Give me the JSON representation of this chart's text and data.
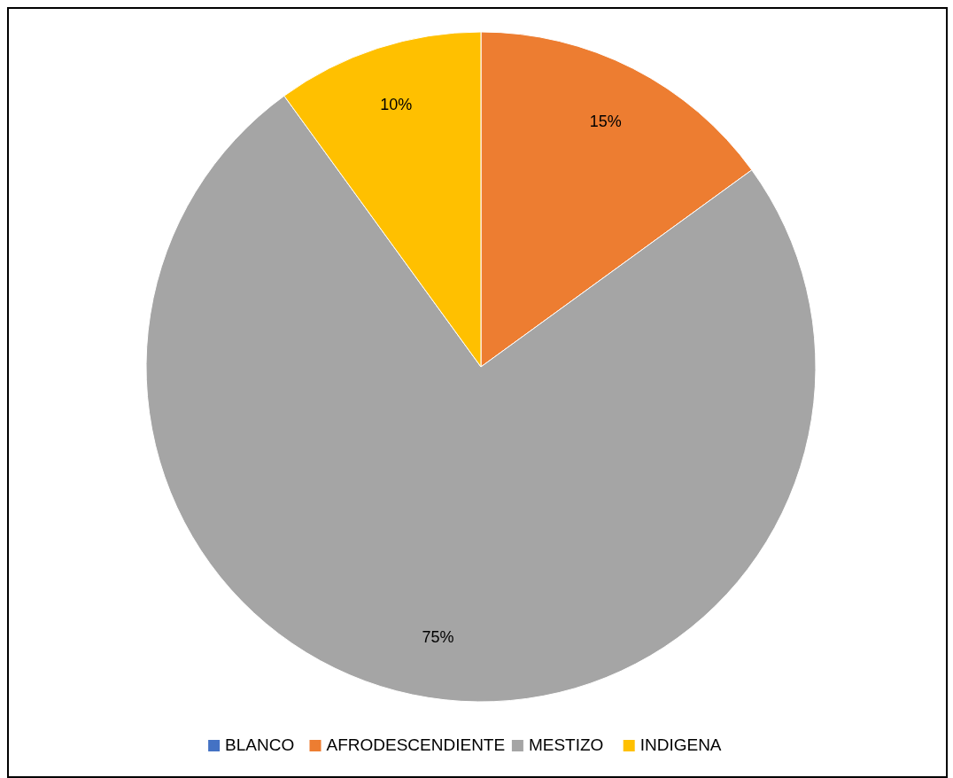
{
  "chart_data": {
    "type": "pie",
    "categories": [
      "BLANCO",
      "AFRODESCENDIENTE",
      "MESTIZO",
      "INDIGENA"
    ],
    "values": [
      0,
      15,
      75,
      10
    ],
    "colors": [
      "#4472c4",
      "#ed7d31",
      "#a5a5a5",
      "#ffc000"
    ],
    "value_labels": [
      null,
      "15%",
      "75%",
      "10%"
    ],
    "legend": "bottom"
  }
}
